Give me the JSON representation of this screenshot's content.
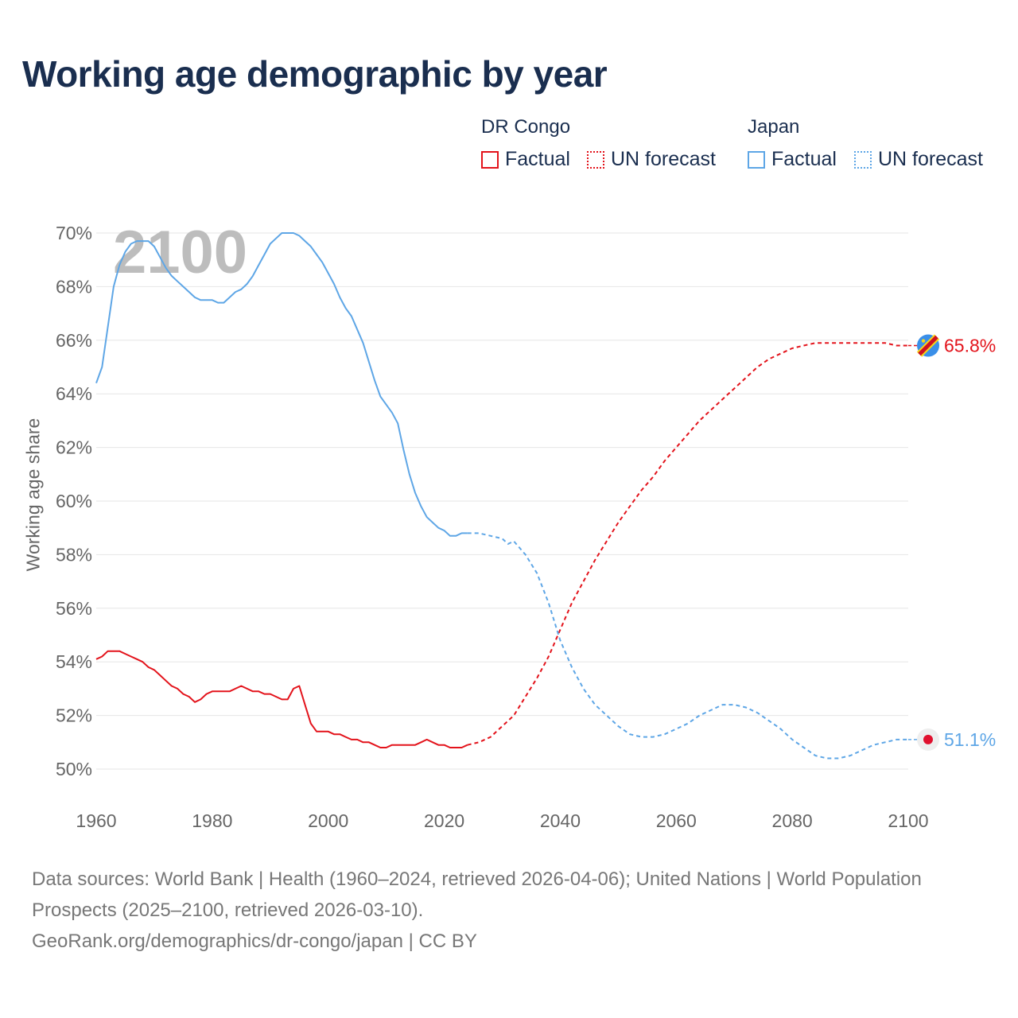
{
  "title": "Working age demographic by year",
  "legend": {
    "groups": [
      {
        "name": "DR Congo",
        "color": "#e3131b",
        "factual": "Factual",
        "forecast": "UN forecast"
      },
      {
        "name": "Japan",
        "color": "#5ea6e6",
        "factual": "Factual",
        "forecast": "UN forecast"
      }
    ]
  },
  "footer": {
    "line1": "Data sources: World Bank | Health (1960–2024, retrieved 2026-04-06); United Nations | World Population Prospects (2025–2100, retrieved 2026-03-10).",
    "line2": "GeoRank.org/demographics/dr-congo/japan | CC BY"
  },
  "chart_data": {
    "type": "line",
    "title": "Working age demographic by year",
    "xlabel": "",
    "ylabel": "Working age share",
    "xlim": [
      1960,
      2100
    ],
    "ylim": [
      50,
      70
    ],
    "grid": true,
    "year_watermark": "2100",
    "x_ticks": [
      "1960",
      "1980",
      "2000",
      "2020",
      "2040",
      "2060",
      "2080",
      "2100"
    ],
    "y_ticks": [
      "50%",
      "52%",
      "54%",
      "56%",
      "58%",
      "60%",
      "62%",
      "64%",
      "66%",
      "68%",
      "70%"
    ],
    "series": [
      {
        "name": "DR Congo",
        "color": "#e3131b",
        "end_label": "65.8%",
        "factual": [
          [
            1960,
            54.1
          ],
          [
            1961,
            54.2
          ],
          [
            1962,
            54.4
          ],
          [
            1963,
            54.4
          ],
          [
            1964,
            54.4
          ],
          [
            1965,
            54.3
          ],
          [
            1966,
            54.2
          ],
          [
            1967,
            54.1
          ],
          [
            1968,
            54.0
          ],
          [
            1969,
            53.8
          ],
          [
            1970,
            53.7
          ],
          [
            1971,
            53.5
          ],
          [
            1972,
            53.3
          ],
          [
            1973,
            53.1
          ],
          [
            1974,
            53.0
          ],
          [
            1975,
            52.8
          ],
          [
            1976,
            52.7
          ],
          [
            1977,
            52.5
          ],
          [
            1978,
            52.6
          ],
          [
            1979,
            52.8
          ],
          [
            1980,
            52.9
          ],
          [
            1981,
            52.9
          ],
          [
            1982,
            52.9
          ],
          [
            1983,
            52.9
          ],
          [
            1984,
            53.0
          ],
          [
            1985,
            53.1
          ],
          [
            1986,
            53.0
          ],
          [
            1987,
            52.9
          ],
          [
            1988,
            52.9
          ],
          [
            1989,
            52.8
          ],
          [
            1990,
            52.8
          ],
          [
            1991,
            52.7
          ],
          [
            1992,
            52.6
          ],
          [
            1993,
            52.6
          ],
          [
            1994,
            53.0
          ],
          [
            1995,
            53.1
          ],
          [
            1996,
            52.4
          ],
          [
            1997,
            51.7
          ],
          [
            1998,
            51.4
          ],
          [
            1999,
            51.4
          ],
          [
            2000,
            51.4
          ],
          [
            2001,
            51.3
          ],
          [
            2002,
            51.3
          ],
          [
            2003,
            51.2
          ],
          [
            2004,
            51.1
          ],
          [
            2005,
            51.1
          ],
          [
            2006,
            51.0
          ],
          [
            2007,
            51.0
          ],
          [
            2008,
            50.9
          ],
          [
            2009,
            50.8
          ],
          [
            2010,
            50.8
          ],
          [
            2011,
            50.9
          ],
          [
            2012,
            50.9
          ],
          [
            2013,
            50.9
          ],
          [
            2014,
            50.9
          ],
          [
            2015,
            50.9
          ],
          [
            2016,
            51.0
          ],
          [
            2017,
            51.1
          ],
          [
            2018,
            51.0
          ],
          [
            2019,
            50.9
          ],
          [
            2020,
            50.9
          ],
          [
            2021,
            50.8
          ],
          [
            2022,
            50.8
          ],
          [
            2023,
            50.8
          ],
          [
            2024,
            50.9
          ]
        ],
        "forecast": [
          [
            2024,
            50.9
          ],
          [
            2026,
            51.0
          ],
          [
            2028,
            51.2
          ],
          [
            2030,
            51.6
          ],
          [
            2032,
            52.0
          ],
          [
            2034,
            52.7
          ],
          [
            2036,
            53.4
          ],
          [
            2038,
            54.2
          ],
          [
            2040,
            55.2
          ],
          [
            2042,
            56.2
          ],
          [
            2044,
            57.0
          ],
          [
            2046,
            57.8
          ],
          [
            2048,
            58.5
          ],
          [
            2050,
            59.2
          ],
          [
            2052,
            59.8
          ],
          [
            2054,
            60.4
          ],
          [
            2056,
            60.9
          ],
          [
            2058,
            61.5
          ],
          [
            2060,
            62.0
          ],
          [
            2062,
            62.5
          ],
          [
            2064,
            63.0
          ],
          [
            2066,
            63.4
          ],
          [
            2068,
            63.8
          ],
          [
            2070,
            64.2
          ],
          [
            2072,
            64.6
          ],
          [
            2074,
            65.0
          ],
          [
            2076,
            65.3
          ],
          [
            2078,
            65.5
          ],
          [
            2080,
            65.7
          ],
          [
            2082,
            65.8
          ],
          [
            2084,
            65.9
          ],
          [
            2086,
            65.9
          ],
          [
            2088,
            65.9
          ],
          [
            2090,
            65.9
          ],
          [
            2092,
            65.9
          ],
          [
            2094,
            65.9
          ],
          [
            2096,
            65.9
          ],
          [
            2098,
            65.8
          ],
          [
            2100,
            65.8
          ]
        ]
      },
      {
        "name": "Japan",
        "color": "#5ea6e6",
        "end_label": "51.1%",
        "factual": [
          [
            1960,
            64.4
          ],
          [
            1961,
            65.0
          ],
          [
            1962,
            66.5
          ],
          [
            1963,
            68.0
          ],
          [
            1964,
            68.8
          ],
          [
            1965,
            69.3
          ],
          [
            1966,
            69.6
          ],
          [
            1967,
            69.7
          ],
          [
            1968,
            69.7
          ],
          [
            1969,
            69.7
          ],
          [
            1970,
            69.5
          ],
          [
            1971,
            69.1
          ],
          [
            1972,
            68.7
          ],
          [
            1973,
            68.4
          ],
          [
            1974,
            68.2
          ],
          [
            1975,
            68.0
          ],
          [
            1976,
            67.8
          ],
          [
            1977,
            67.6
          ],
          [
            1978,
            67.5
          ],
          [
            1979,
            67.5
          ],
          [
            1980,
            67.5
          ],
          [
            1981,
            67.4
          ],
          [
            1982,
            67.4
          ],
          [
            1983,
            67.6
          ],
          [
            1984,
            67.8
          ],
          [
            1985,
            67.9
          ],
          [
            1986,
            68.1
          ],
          [
            1987,
            68.4
          ],
          [
            1988,
            68.8
          ],
          [
            1989,
            69.2
          ],
          [
            1990,
            69.6
          ],
          [
            1991,
            69.8
          ],
          [
            1992,
            70.0
          ],
          [
            1993,
            70.0
          ],
          [
            1994,
            70.0
          ],
          [
            1995,
            69.9
          ],
          [
            1996,
            69.7
          ],
          [
            1997,
            69.5
          ],
          [
            1998,
            69.2
          ],
          [
            1999,
            68.9
          ],
          [
            2000,
            68.5
          ],
          [
            2001,
            68.1
          ],
          [
            2002,
            67.6
          ],
          [
            2003,
            67.2
          ],
          [
            2004,
            66.9
          ],
          [
            2005,
            66.4
          ],
          [
            2006,
            65.9
          ],
          [
            2007,
            65.2
          ],
          [
            2008,
            64.5
          ],
          [
            2009,
            63.9
          ],
          [
            2010,
            63.6
          ],
          [
            2011,
            63.3
          ],
          [
            2012,
            62.9
          ],
          [
            2013,
            61.9
          ],
          [
            2014,
            61.0
          ],
          [
            2015,
            60.3
          ],
          [
            2016,
            59.8
          ],
          [
            2017,
            59.4
          ],
          [
            2018,
            59.2
          ],
          [
            2019,
            59.0
          ],
          [
            2020,
            58.9
          ],
          [
            2021,
            58.7
          ],
          [
            2022,
            58.7
          ],
          [
            2023,
            58.8
          ],
          [
            2024,
            58.8
          ]
        ],
        "forecast": [
          [
            2024,
            58.8
          ],
          [
            2026,
            58.8
          ],
          [
            2028,
            58.7
          ],
          [
            2030,
            58.6
          ],
          [
            2031,
            58.4
          ],
          [
            2032,
            58.5
          ],
          [
            2034,
            58.0
          ],
          [
            2036,
            57.3
          ],
          [
            2038,
            56.2
          ],
          [
            2040,
            54.8
          ],
          [
            2042,
            53.8
          ],
          [
            2044,
            53.0
          ],
          [
            2046,
            52.4
          ],
          [
            2048,
            52.0
          ],
          [
            2050,
            51.6
          ],
          [
            2052,
            51.3
          ],
          [
            2054,
            51.2
          ],
          [
            2056,
            51.2
          ],
          [
            2058,
            51.3
          ],
          [
            2060,
            51.5
          ],
          [
            2062,
            51.7
          ],
          [
            2064,
            52.0
          ],
          [
            2066,
            52.2
          ],
          [
            2068,
            52.4
          ],
          [
            2070,
            52.4
          ],
          [
            2072,
            52.3
          ],
          [
            2074,
            52.1
          ],
          [
            2076,
            51.8
          ],
          [
            2078,
            51.5
          ],
          [
            2080,
            51.1
          ],
          [
            2082,
            50.8
          ],
          [
            2084,
            50.5
          ],
          [
            2086,
            50.4
          ],
          [
            2088,
            50.4
          ],
          [
            2090,
            50.5
          ],
          [
            2092,
            50.7
          ],
          [
            2094,
            50.9
          ],
          [
            2096,
            51.0
          ],
          [
            2098,
            51.1
          ],
          [
            2100,
            51.1
          ]
        ]
      }
    ]
  }
}
